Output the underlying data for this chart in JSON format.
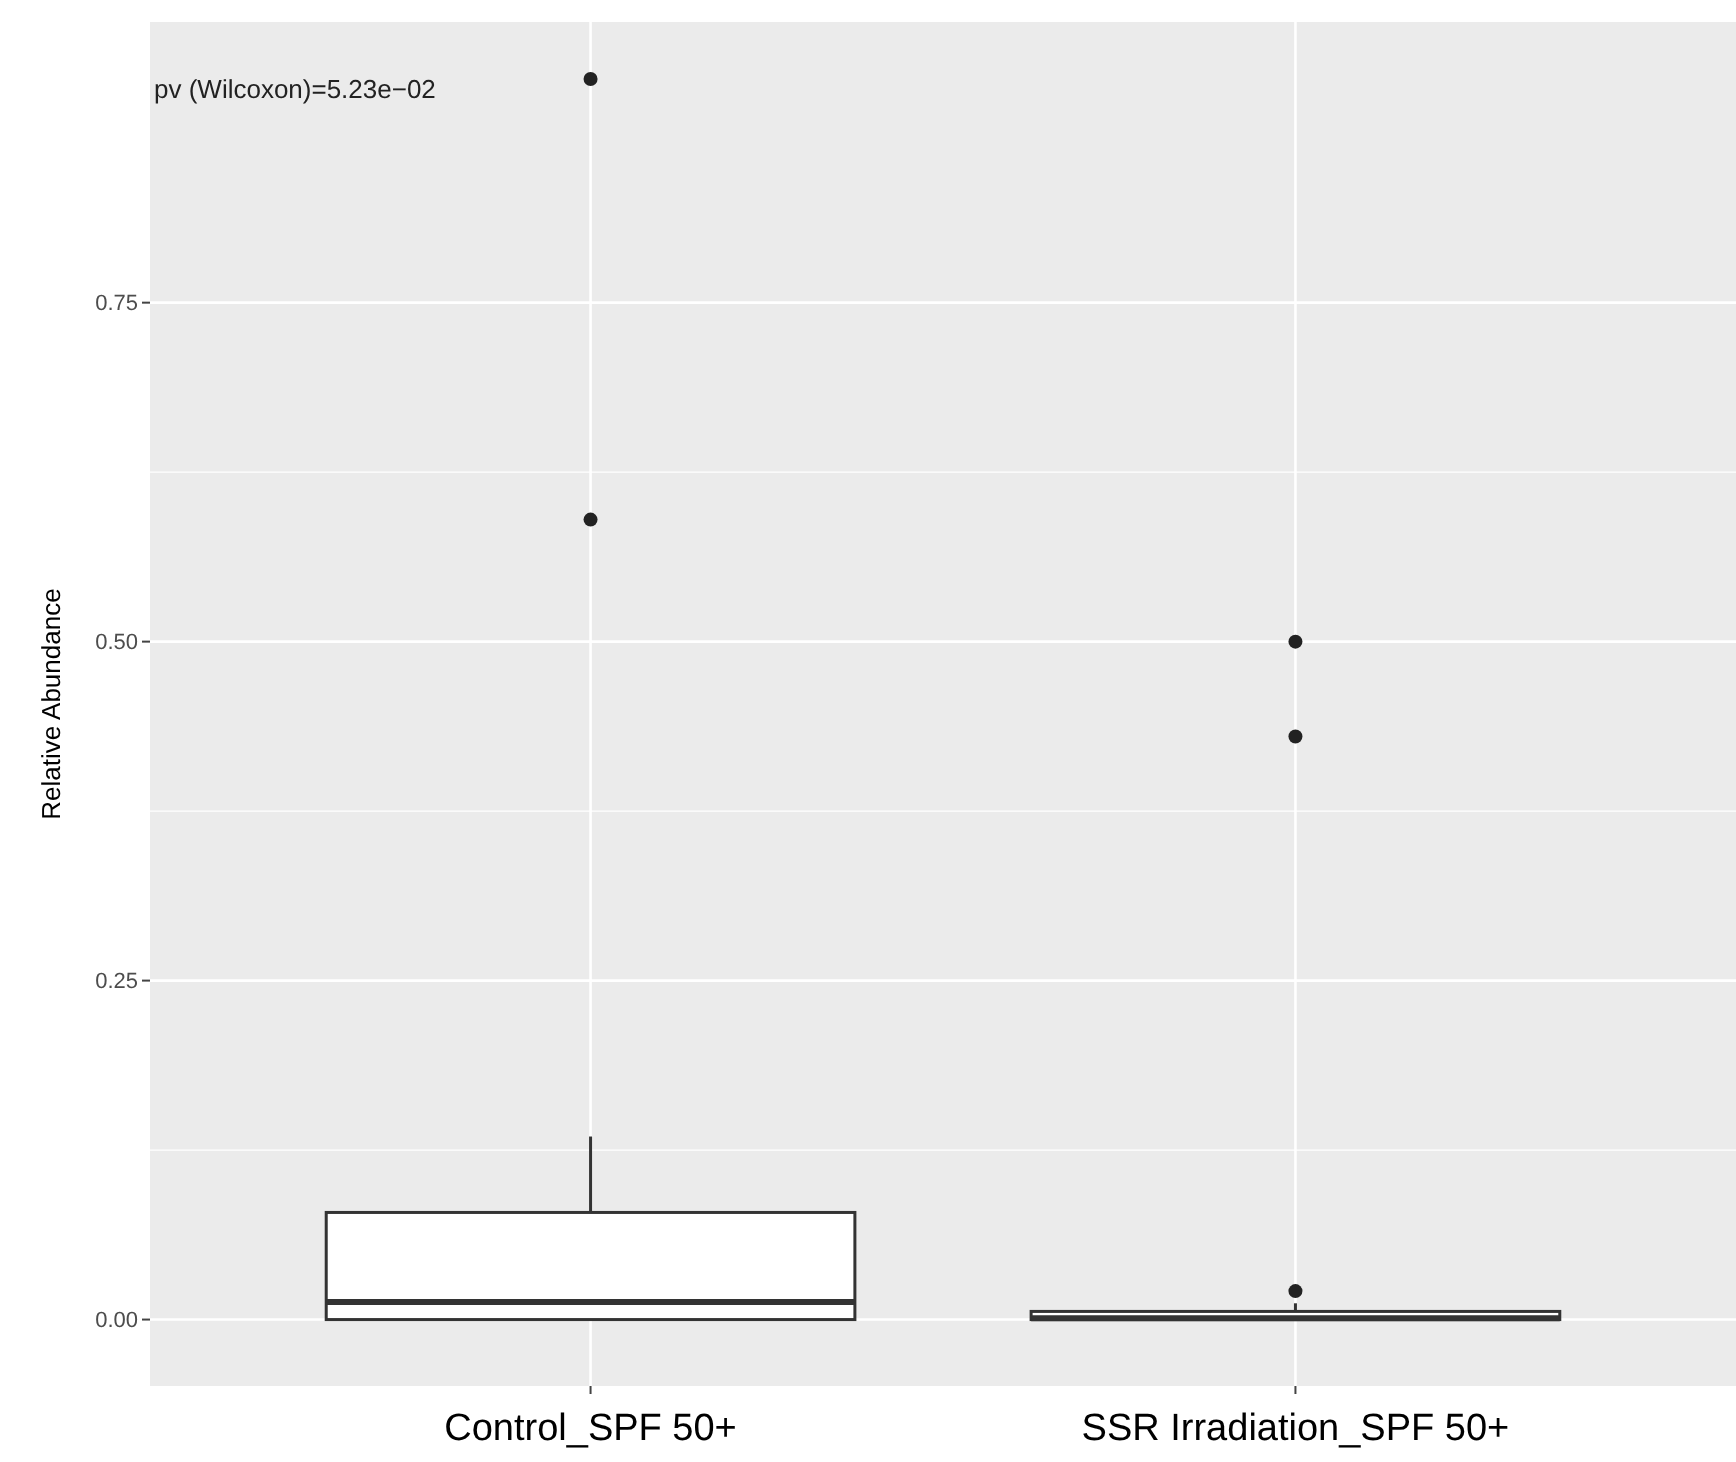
{
  "chart_data": {
    "type": "box",
    "ylabel": "Relative Abundance",
    "categories": [
      "Control_SPF 50+",
      "SSR Irradiation_SPF 50+"
    ],
    "boxes": [
      {
        "low": 0,
        "q1": 0,
        "median": 0.013,
        "q3": 0.079,
        "high": 0.135,
        "outliers": [
          0.59,
          0.915
        ]
      },
      {
        "low": 0,
        "q1": 0,
        "median": 0.001,
        "q3": 0.006,
        "high": 0.012,
        "outliers": [
          0.021,
          0.43,
          0.5
        ]
      }
    ],
    "ylim": [
      -0.049,
      0.957
    ],
    "yticks": [
      {
        "value": 0,
        "label": "0.00"
      },
      {
        "value": 0.25,
        "label": "0.25"
      },
      {
        "value": 0.5,
        "label": "0.50"
      },
      {
        "value": 0.75,
        "label": "0.75"
      }
    ],
    "grid": true,
    "annotations": [
      "pv (Wilcoxon)=5.23e−02"
    ]
  }
}
